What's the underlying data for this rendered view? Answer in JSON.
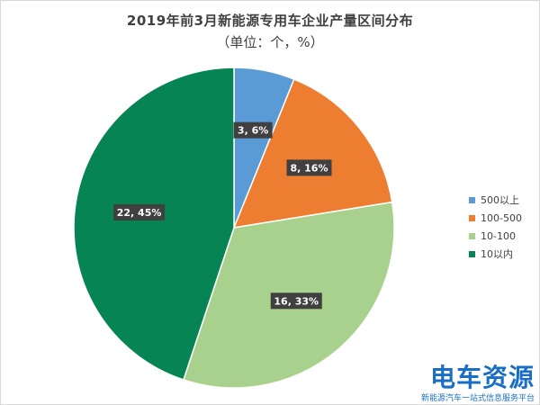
{
  "chart_data": {
    "type": "pie",
    "title": "2019年前3月新能源专用车企业产量区间分布",
    "subtitle": "（单位：个，%）",
    "categories": [
      "500以上",
      "100-500",
      "10-100",
      "10以内"
    ],
    "values": [
      3,
      8,
      16,
      22
    ],
    "percents": [
      6,
      16,
      33,
      45
    ],
    "data_labels": [
      "3, 6%",
      "8, 16%",
      "16, 33%",
      "22, 45%"
    ],
    "colors": [
      "#5b9bd5",
      "#ed7d31",
      "#a9d18e",
      "#068453"
    ],
    "legend_position": "right"
  },
  "watermark": {
    "logo_text": "电车资源",
    "tagline": "新能源汽车一站式信息服务平台"
  }
}
